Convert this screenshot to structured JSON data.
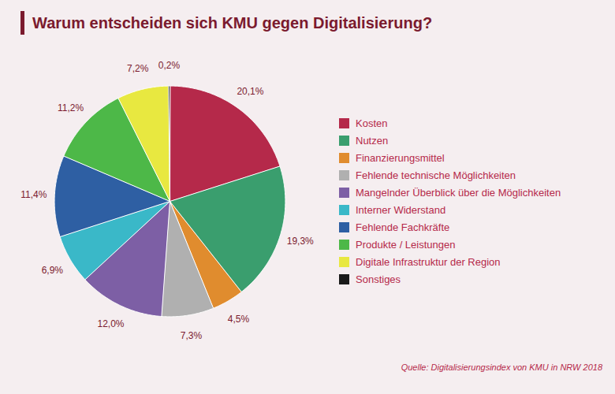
{
  "chart_data": {
    "type": "pie",
    "title": "Warum entscheiden sich KMU gegen Digitalisierung?",
    "annotations": [
      "Quelle: Digitalisierungsindex von KMU in NRW 2018"
    ],
    "categories": [
      "Kosten",
      "Nutzen",
      "Finanzierungsmittel",
      "Fehlende technische Möglichkeiten",
      "Mangelnder Überblick über die Möglichkeiten",
      "Interner Widerstand",
      "Fehlende Fachkräfte",
      "Produkte / Leistungen",
      "Digitale Infrastruktur der Region",
      "Sonstiges"
    ],
    "values": [
      20.1,
      19.3,
      4.5,
      7.3,
      12.0,
      6.9,
      11.4,
      11.2,
      7.2,
      0.2
    ],
    "value_labels": [
      "20,1%",
      "19,3%",
      "4,5%",
      "7,3%",
      "12,0%",
      "6,9%",
      "11,4%",
      "11,2%",
      "7,2%",
      "0,2%"
    ],
    "colors": [
      "#b5294a",
      "#3a9e6e",
      "#e08c2e",
      "#b0b0b0",
      "#7d5fa5",
      "#3ab8c8",
      "#2e5fa3",
      "#4db848",
      "#e8e840",
      "#1a1a1a"
    ],
    "data_labels": true,
    "legend": "right",
    "tick_labels": false
  }
}
